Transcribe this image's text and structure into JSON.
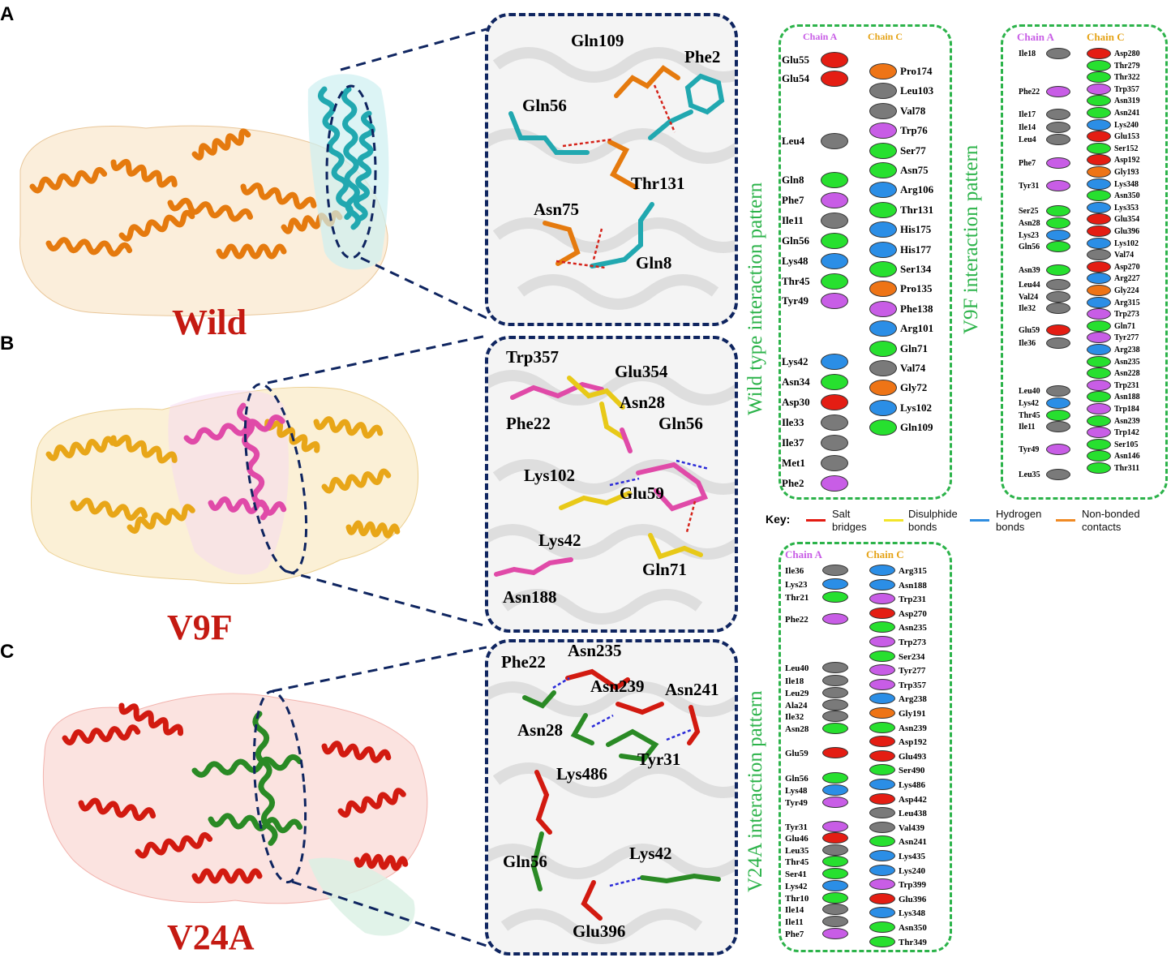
{
  "panels": [
    {
      "letter": "A",
      "variant": "Wild",
      "protein_color": "#e57a0e",
      "ligand_color": "#21a8b0",
      "residues": [
        "Gln109",
        "Phe2",
        "Gln56",
        "Thr131",
        "Asn75",
        "Gln8"
      ]
    },
    {
      "letter": "B",
      "variant": "V9F",
      "protein_color": "#e8a618",
      "ligand_color": "#e04aa8",
      "residues": [
        "Trp357",
        "Glu354",
        "Asn28",
        "Phe22",
        "Gln56",
        "Lys102",
        "Glu59",
        "Lys42",
        "Gln71",
        "Asn188"
      ]
    },
    {
      "letter": "C",
      "variant": "V24A",
      "protein_color": "#d21a10",
      "ligand_color": "#2a8a25",
      "residues": [
        "Phe22",
        "Asn235",
        "Asn239",
        "Asn241",
        "Asn28",
        "Tyr31",
        "Lys486",
        "Gln56",
        "Lys42",
        "Glu396"
      ]
    }
  ],
  "interaction_boxes": [
    {
      "title": "Wild type interaction pattern",
      "chain_a_label": "Chain A",
      "chain_c_label": "Chain C",
      "chain_a": [
        {
          "name": "Glu55",
          "type": "red"
        },
        {
          "name": "Glu54",
          "type": "red"
        },
        {
          "name": "Leu4",
          "type": "grey"
        },
        {
          "name": "Gln8",
          "type": "green"
        },
        {
          "name": "Phe7",
          "type": "violet"
        },
        {
          "name": "Ile11",
          "type": "grey"
        },
        {
          "name": "Gln56",
          "type": "green"
        },
        {
          "name": "Lys48",
          "type": "blue"
        },
        {
          "name": "Thr45",
          "type": "green"
        },
        {
          "name": "Tyr49",
          "type": "violet"
        },
        {
          "name": "Lys42",
          "type": "blue"
        },
        {
          "name": "Asn34",
          "type": "green"
        },
        {
          "name": "Asp30",
          "type": "red"
        },
        {
          "name": "Ile33",
          "type": "grey"
        },
        {
          "name": "Ile37",
          "type": "grey"
        },
        {
          "name": "Met1",
          "type": "grey"
        },
        {
          "name": "Phe2",
          "type": "violet"
        }
      ],
      "chain_c": [
        {
          "name": "Pro174",
          "type": "orange"
        },
        {
          "name": "Leu103",
          "type": "grey"
        },
        {
          "name": "Val78",
          "type": "grey"
        },
        {
          "name": "Trp76",
          "type": "violet"
        },
        {
          "name": "Ser77",
          "type": "green"
        },
        {
          "name": "Asn75",
          "type": "green"
        },
        {
          "name": "Arg106",
          "type": "blue"
        },
        {
          "name": "Thr131",
          "type": "green"
        },
        {
          "name": "His175",
          "type": "blue"
        },
        {
          "name": "His177",
          "type": "blue"
        },
        {
          "name": "Ser134",
          "type": "green"
        },
        {
          "name": "Pro135",
          "type": "orange"
        },
        {
          "name": "Phe138",
          "type": "violet"
        },
        {
          "name": "Arg101",
          "type": "blue"
        },
        {
          "name": "Gln71",
          "type": "green"
        },
        {
          "name": "Val74",
          "type": "grey"
        },
        {
          "name": "Gly72",
          "type": "orange"
        },
        {
          "name": "Lys102",
          "type": "blue"
        },
        {
          "name": "Gln109",
          "type": "green"
        }
      ]
    },
    {
      "title": "V9F interaction pattern",
      "chain_a_label": "Chain A",
      "chain_c_label": "Chain C",
      "chain_a": [
        {
          "name": "Ile18",
          "type": "grey"
        },
        {
          "name": "Phe22",
          "type": "violet"
        },
        {
          "name": "Ile17",
          "type": "grey"
        },
        {
          "name": "Ile14",
          "type": "grey"
        },
        {
          "name": "Leu4",
          "type": "grey"
        },
        {
          "name": "Phe7",
          "type": "violet"
        },
        {
          "name": "Tyr31",
          "type": "violet"
        },
        {
          "name": "Ser25",
          "type": "green"
        },
        {
          "name": "Asn28",
          "type": "green"
        },
        {
          "name": "Lys23",
          "type": "blue"
        },
        {
          "name": "Gln56",
          "type": "green"
        },
        {
          "name": "Asn39",
          "type": "green"
        },
        {
          "name": "Leu44",
          "type": "grey"
        },
        {
          "name": "Val24",
          "type": "grey"
        },
        {
          "name": "Ile32",
          "type": "grey"
        },
        {
          "name": "Glu59",
          "type": "red"
        },
        {
          "name": "Ile36",
          "type": "grey"
        },
        {
          "name": "Leu40",
          "type": "grey"
        },
        {
          "name": "Lys42",
          "type": "blue"
        },
        {
          "name": "Thr45",
          "type": "green"
        },
        {
          "name": "Ile11",
          "type": "grey"
        },
        {
          "name": "Tyr49",
          "type": "violet"
        },
        {
          "name": "Leu35",
          "type": "grey"
        }
      ],
      "chain_c": [
        {
          "name": "Asp280",
          "type": "red"
        },
        {
          "name": "Thr279",
          "type": "green"
        },
        {
          "name": "Thr322",
          "type": "green"
        },
        {
          "name": "Trp357",
          "type": "violet"
        },
        {
          "name": "Asn319",
          "type": "green"
        },
        {
          "name": "Asn241",
          "type": "green"
        },
        {
          "name": "Lys240",
          "type": "blue"
        },
        {
          "name": "Glu153",
          "type": "red"
        },
        {
          "name": "Ser152",
          "type": "green"
        },
        {
          "name": "Asp192",
          "type": "red"
        },
        {
          "name": "Gly193",
          "type": "orange"
        },
        {
          "name": "Lys348",
          "type": "blue"
        },
        {
          "name": "Asn350",
          "type": "green"
        },
        {
          "name": "Lys353",
          "type": "blue"
        },
        {
          "name": "Glu354",
          "type": "red"
        },
        {
          "name": "Glu396",
          "type": "red"
        },
        {
          "name": "Lys102",
          "type": "blue"
        },
        {
          "name": "Val74",
          "type": "grey"
        },
        {
          "name": "Asp270",
          "type": "red"
        },
        {
          "name": "Arg227",
          "type": "blue"
        },
        {
          "name": "Gly224",
          "type": "orange"
        },
        {
          "name": "Arg315",
          "type": "blue"
        },
        {
          "name": "Trp273",
          "type": "violet"
        },
        {
          "name": "Gln71",
          "type": "green"
        },
        {
          "name": "Tyr277",
          "type": "violet"
        },
        {
          "name": "Arg238",
          "type": "blue"
        },
        {
          "name": "Asn235",
          "type": "green"
        },
        {
          "name": "Asn228",
          "type": "green"
        },
        {
          "name": "Trp231",
          "type": "violet"
        },
        {
          "name": "Asn188",
          "type": "green"
        },
        {
          "name": "Trp184",
          "type": "violet"
        },
        {
          "name": "Asn239",
          "type": "green"
        },
        {
          "name": "Trp142",
          "type": "violet"
        },
        {
          "name": "Ser105",
          "type": "green"
        },
        {
          "name": "Asn146",
          "type": "green"
        },
        {
          "name": "Thr311",
          "type": "green"
        }
      ]
    },
    {
      "title": "V24A interaction pattern",
      "chain_a_label": "Chain A",
      "chain_c_label": "Chain C",
      "chain_a": [
        {
          "name": "Ile36",
          "type": "grey"
        },
        {
          "name": "Lys23",
          "type": "blue"
        },
        {
          "name": "Thr21",
          "type": "green"
        },
        {
          "name": "Phe22",
          "type": "violet"
        },
        {
          "name": "Leu40",
          "type": "grey"
        },
        {
          "name": "Ile18",
          "type": "grey"
        },
        {
          "name": "Leu29",
          "type": "grey"
        },
        {
          "name": "Ala24",
          "type": "grey"
        },
        {
          "name": "Ile32",
          "type": "grey"
        },
        {
          "name": "Asn28",
          "type": "green"
        },
        {
          "name": "Glu59",
          "type": "red"
        },
        {
          "name": "Gln56",
          "type": "green"
        },
        {
          "name": "Lys48",
          "type": "blue"
        },
        {
          "name": "Tyr49",
          "type": "violet"
        },
        {
          "name": "Tyr31",
          "type": "violet"
        },
        {
          "name": "Glu46",
          "type": "red"
        },
        {
          "name": "Leu35",
          "type": "grey"
        },
        {
          "name": "Thr45",
          "type": "green"
        },
        {
          "name": "Ser41",
          "type": "green"
        },
        {
          "name": "Lys42",
          "type": "blue"
        },
        {
          "name": "Thr10",
          "type": "green"
        },
        {
          "name": "Ile14",
          "type": "grey"
        },
        {
          "name": "Ile11",
          "type": "grey"
        },
        {
          "name": "Phe7",
          "type": "violet"
        }
      ],
      "chain_c": [
        {
          "name": "Arg315",
          "type": "blue"
        },
        {
          "name": "Asn188",
          "type": "blue"
        },
        {
          "name": "Trp231",
          "type": "violet"
        },
        {
          "name": "Asp270",
          "type": "red"
        },
        {
          "name": "Asn235",
          "type": "green"
        },
        {
          "name": "Trp273",
          "type": "violet"
        },
        {
          "name": "Ser234",
          "type": "green"
        },
        {
          "name": "Tyr277",
          "type": "violet"
        },
        {
          "name": "Trp357",
          "type": "violet"
        },
        {
          "name": "Arg238",
          "type": "blue"
        },
        {
          "name": "Gly191",
          "type": "orange"
        },
        {
          "name": "Asn239",
          "type": "green"
        },
        {
          "name": "Asp192",
          "type": "red"
        },
        {
          "name": "Glu493",
          "type": "red"
        },
        {
          "name": "Ser490",
          "type": "green"
        },
        {
          "name": "Lys486",
          "type": "blue"
        },
        {
          "name": "Asp442",
          "type": "red"
        },
        {
          "name": "Leu438",
          "type": "grey"
        },
        {
          "name": "Val439",
          "type": "grey"
        },
        {
          "name": "Asn241",
          "type": "green"
        },
        {
          "name": "Lys435",
          "type": "blue"
        },
        {
          "name": "Lys240",
          "type": "blue"
        },
        {
          "name": "Trp399",
          "type": "violet"
        },
        {
          "name": "Glu396",
          "type": "red"
        },
        {
          "name": "Lys348",
          "type": "blue"
        },
        {
          "name": "Asn350",
          "type": "green"
        },
        {
          "name": "Thr349",
          "type": "green"
        }
      ]
    }
  ],
  "key": {
    "title": "Key:",
    "items": [
      {
        "label": "Salt bridges",
        "line1": "Salt",
        "line2": "bridges",
        "color": "#e31b12"
      },
      {
        "label": "Disulphide bonds",
        "line1": "Disulphide",
        "line2": "bonds",
        "color": "#f3e52a"
      },
      {
        "label": "Hydrogen bonds",
        "line1": "Hydrogen",
        "line2": "bonds",
        "color": "#2e8de0"
      },
      {
        "label": "Non-bonded contacts",
        "line1": "Non-bonded",
        "line2": "contacts",
        "color": "#f08a24"
      }
    ]
  },
  "type_colors": {
    "red": "#e41d13",
    "grey": "#7a7a7a",
    "green": "#27e02f",
    "violet": "#c85de6",
    "blue": "#2b8ee6",
    "orange": "#ee7416"
  },
  "chain_a_color": "#c85de6",
  "chain_c_color": "#e5a317"
}
